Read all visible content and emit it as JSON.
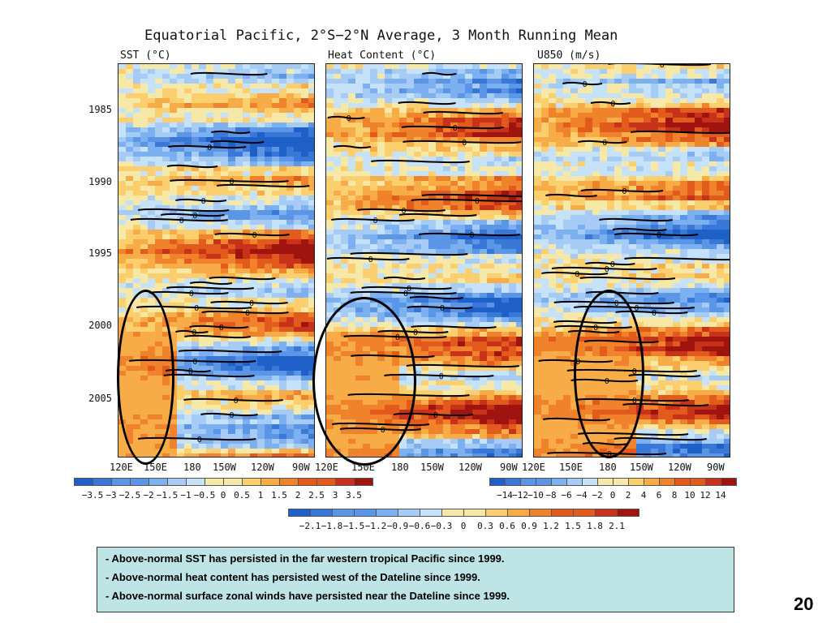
{
  "title": "Equatorial Pacific, 2°S−2°N Average, 3 Month Running Mean",
  "panels": [
    {
      "title": "SST (°C)"
    },
    {
      "title": "Heat Content (°C)"
    },
    {
      "title": "U850 (m/s)"
    }
  ],
  "y_ticks": [
    "1985",
    "1990",
    "1995",
    "2000",
    "2005"
  ],
  "x_ticks_panel1": [
    "120E",
    "150E",
    "180",
    "150W",
    "120W",
    "90W"
  ],
  "x_ticks_panel2": [
    "120E",
    "150E",
    "180",
    "150W",
    "120W",
    "90W"
  ],
  "x_ticks_panel3": [
    "120E",
    "150E",
    "180",
    "150W",
    "120W",
    "90W"
  ],
  "colorbars": {
    "sst": {
      "labels": [
        "−3.5",
        "−3",
        "−2.5",
        "−2",
        "−1.5",
        "−1",
        "−0.5",
        "0",
        "0.5",
        "1",
        "1.5",
        "2",
        "2.5",
        "3",
        "3.5"
      ]
    },
    "u850": {
      "labels": [
        "−14",
        "−12",
        "−10",
        "−8",
        "−6",
        "−4",
        "−2",
        "0",
        "2",
        "4",
        "6",
        "8",
        "10",
        "12",
        "14"
      ]
    },
    "heat": {
      "labels": [
        "−2.1",
        "−1.8",
        "−1.5",
        "−1.2",
        "−0.9",
        "−0.6",
        "−0.3",
        "0",
        "0.3",
        "0.6",
        "0.9",
        "1.2",
        "1.5",
        "1.8",
        "2.1"
      ]
    }
  },
  "colors": [
    "#1f5fc8",
    "#3a78d8",
    "#5b95e6",
    "#7db0f0",
    "#a6ccf6",
    "#c6e2f8",
    "#f6e8a6",
    "#fbcf6e",
    "#f8ac48",
    "#f0822c",
    "#e25a1c",
    "#c8321a",
    "#a01410"
  ],
  "notes": [
    "-  Above-normal SST has persisted in the far western tropical Pacific since 1999.",
    "- Above-normal heat content has persisted west of the Dateline since 1999.",
    "- Above-normal surface zonal winds have persisted near the Dateline since 1999."
  ],
  "page_number": "20",
  "chart_data": [
    {
      "type": "heatmap",
      "title": "SST (°C)",
      "x_ticks": [
        "120E",
        "150E",
        "180",
        "150W",
        "120W",
        "90W"
      ],
      "y_range": [
        "1982",
        "2008"
      ],
      "y_ticks": [
        "1985",
        "1990",
        "1995",
        "2000",
        "2005"
      ],
      "contour_label": "0",
      "color_scale": [
        -3.5,
        -3,
        -2.5,
        -2,
        -1.5,
        -1,
        -0.5,
        0,
        0.5,
        1,
        1.5,
        2,
        2.5,
        3,
        3.5
      ]
    },
    {
      "type": "heatmap",
      "title": "Heat Content (°C)",
      "x_ticks": [
        "120E",
        "150E",
        "180",
        "150W",
        "120W",
        "90W"
      ],
      "y_range": [
        "1982",
        "2008"
      ],
      "y_ticks": [
        "1985",
        "1990",
        "1995",
        "2000",
        "2005"
      ],
      "contour_label": "0",
      "color_scale": [
        -2.1,
        -1.8,
        -1.5,
        -1.2,
        -0.9,
        -0.6,
        -0.3,
        0,
        0.3,
        0.6,
        0.9,
        1.2,
        1.5,
        1.8,
        2.1
      ]
    },
    {
      "type": "heatmap",
      "title": "U850 (m/s)",
      "x_ticks": [
        "120E",
        "150E",
        "180",
        "150W",
        "120W",
        "90W"
      ],
      "y_range": [
        "1982",
        "2008"
      ],
      "y_ticks": [
        "1985",
        "1990",
        "1995",
        "2000",
        "2005"
      ],
      "contour_label": "0",
      "color_scale": [
        -14,
        -12,
        -10,
        -8,
        -6,
        -4,
        -2,
        0,
        2,
        4,
        6,
        8,
        10,
        12,
        14
      ]
    }
  ]
}
